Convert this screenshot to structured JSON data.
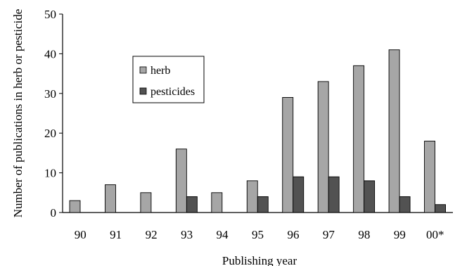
{
  "chart_data": {
    "type": "bar",
    "title": "",
    "xlabel": "Publishing year",
    "ylabel": "Number of publications in herb or pesticide",
    "categories": [
      "90",
      "91",
      "92",
      "93",
      "94",
      "95",
      "96",
      "97",
      "98",
      "99",
      "00*"
    ],
    "series": [
      {
        "name": "herb",
        "color": "#a6a6a6",
        "values": [
          3,
          7,
          5,
          16,
          5,
          8,
          29,
          33,
          37,
          41,
          18
        ]
      },
      {
        "name": "pesticides",
        "color": "#525252",
        "values": [
          0,
          0,
          0,
          4,
          0,
          4,
          9,
          9,
          8,
          4,
          2
        ]
      }
    ],
    "ylim": [
      0,
      50
    ],
    "yticks": [
      0,
      10,
      20,
      30,
      40,
      50
    ],
    "grid": false,
    "legend_position": "upper-left inside plot"
  }
}
